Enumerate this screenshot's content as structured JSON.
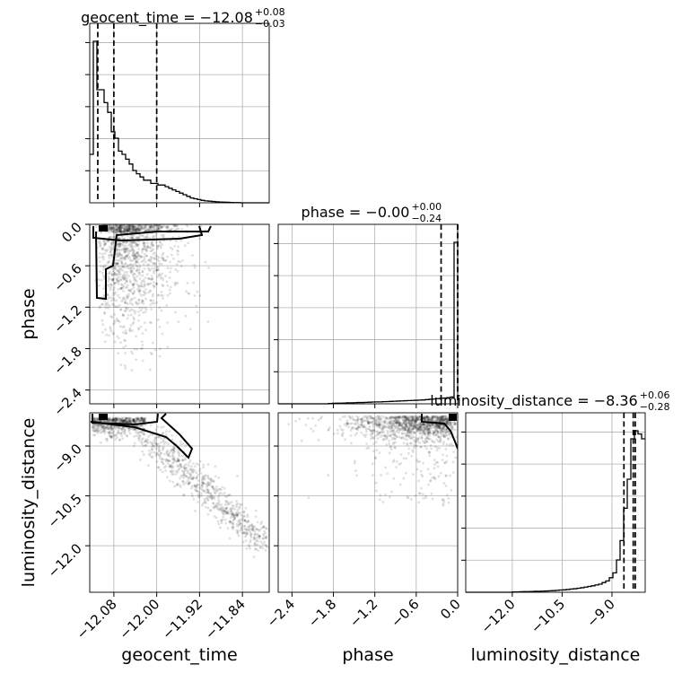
{
  "chart_data": {
    "type": "corner",
    "parameters": [
      "geocent_time",
      "phase",
      "luminosity_distance"
    ],
    "axis_labels": {
      "geocent_time": "geocent_time",
      "phase": "phase",
      "luminosity_distance": "luminosity_distance"
    },
    "ranges": {
      "geocent_time": [
        -12.125,
        -11.79
      ],
      "phase": [
        -2.6,
        0.0
      ],
      "luminosity_distance": [
        -13.4,
        -8.0
      ]
    },
    "ticks": {
      "geocent_time": [
        {
          "value": -12.08,
          "label": "−12.08"
        },
        {
          "value": -12.0,
          "label": "−12.00"
        },
        {
          "value": -11.92,
          "label": "−11.92"
        },
        {
          "value": -11.84,
          "label": "−11.84"
        }
      ],
      "phase": [
        {
          "value": -2.4,
          "label": "−2.4"
        },
        {
          "value": -1.8,
          "label": "−1.8"
        },
        {
          "value": -1.2,
          "label": "−1.2"
        },
        {
          "value": -0.6,
          "label": "−0.6"
        },
        {
          "value": 0.0,
          "label": "0.0"
        }
      ],
      "luminosity_distance": [
        {
          "value": -12.0,
          "label": "−12.0"
        },
        {
          "value": -10.5,
          "label": "−10.5"
        },
        {
          "value": -9.0,
          "label": "−9.0"
        }
      ]
    },
    "titles": [
      {
        "param": "geocent_time",
        "text": "geocent_time = −12.08",
        "sup": "+0.08",
        "sub": "−0.03"
      },
      {
        "param": "phase",
        "text": "phase = −0.00",
        "sup": "+0.00",
        "sub": "−0.24"
      },
      {
        "param": "luminosity_distance",
        "text": "luminosity_distance = −8.36",
        "sup": "+0.06",
        "sub": "−0.28"
      }
    ],
    "quantiles": {
      "geocent_time": [
        -12.11,
        -12.08,
        -12.0
      ],
      "phase": [
        -0.24,
        0.0,
        0.0
      ],
      "luminosity_distance": [
        -8.64,
        -8.36,
        -8.3
      ]
    },
    "histograms": {
      "geocent_time": {
        "edges": [
          -12.125,
          -12.1183,
          -12.1116,
          -12.1049,
          -12.0982,
          -12.0915,
          -12.0848,
          -12.0781,
          -12.0714,
          -12.0647,
          -12.058,
          -12.0513,
          -12.0446,
          -12.0379,
          -12.0312,
          -12.0245,
          -12.0178,
          -12.0111,
          -12.0044,
          -11.9977,
          -11.991,
          -11.9843,
          -11.9776,
          -11.9709,
          -11.9642,
          -11.9575,
          -11.9508,
          -11.9441,
          -11.9374,
          -11.9307,
          -11.924,
          -11.9173,
          -11.9106,
          -11.9039,
          -11.8972,
          -11.8905,
          -11.8838,
          -11.8771,
          -11.8704,
          -11.8637,
          -11.857,
          -11.8503,
          -11.8436,
          -11.8369,
          -11.8302,
          -11.8235,
          -11.8168,
          -11.8101,
          -11.8034,
          -11.7967,
          -11.79
        ],
        "counts": [
          0.3,
          1.0,
          0.7,
          0.7,
          0.62,
          0.56,
          0.44,
          0.4,
          0.32,
          0.3,
          0.27,
          0.24,
          0.2,
          0.18,
          0.16,
          0.14,
          0.14,
          0.12,
          0.12,
          0.11,
          0.11,
          0.1,
          0.09,
          0.08,
          0.07,
          0.06,
          0.05,
          0.04,
          0.03,
          0.025,
          0.02,
          0.015,
          0.012,
          0.01,
          0.008,
          0.006,
          0.005,
          0.004,
          0.003,
          0.002,
          0.001,
          0.001,
          0.0,
          0.0,
          0.0,
          0.0,
          0.0,
          0.0,
          0.0,
          0.0
        ]
      },
      "phase": {
        "edges": [
          -2.6,
          -2.548,
          -2.496,
          -2.444,
          -2.392,
          -2.34,
          -2.288,
          -2.236,
          -2.184,
          -2.132,
          -2.08,
          -2.028,
          -1.976,
          -1.924,
          -1.872,
          -1.82,
          -1.768,
          -1.716,
          -1.664,
          -1.612,
          -1.56,
          -1.508,
          -1.456,
          -1.404,
          -1.352,
          -1.3,
          -1.248,
          -1.196,
          -1.144,
          -1.092,
          -1.04,
          -0.988,
          -0.936,
          -0.884,
          -0.832,
          -0.78,
          -0.728,
          -0.676,
          -0.624,
          -0.572,
          -0.52,
          -0.468,
          -0.416,
          -0.364,
          -0.312,
          -0.26,
          -0.208,
          -0.156,
          -0.104,
          -0.052,
          0.0
        ],
        "counts": [
          0,
          0,
          0,
          0,
          0,
          0,
          0,
          0,
          0,
          0,
          0,
          0,
          0,
          0,
          0.002,
          0.003,
          0.004,
          0.004,
          0.005,
          0.006,
          0.006,
          0.007,
          0.008,
          0.008,
          0.009,
          0.01,
          0.011,
          0.012,
          0.012,
          0.013,
          0.014,
          0.015,
          0.016,
          0.017,
          0.018,
          0.019,
          0.02,
          0.021,
          0.022,
          0.023,
          0.024,
          0.026,
          0.028,
          0.03,
          0.032,
          0.034,
          0.036,
          0.038,
          0.042,
          1.0
        ]
      },
      "luminosity_distance": {
        "edges": [
          -13.4,
          -13.292,
          -13.184,
          -13.076,
          -12.968,
          -12.86,
          -12.752,
          -12.644,
          -12.536,
          -12.428,
          -12.32,
          -12.212,
          -12.104,
          -11.996,
          -11.888,
          -11.78,
          -11.672,
          -11.564,
          -11.456,
          -11.348,
          -11.24,
          -11.132,
          -11.024,
          -10.916,
          -10.808,
          -10.7,
          -10.592,
          -10.484,
          -10.376,
          -10.268,
          -10.16,
          -10.052,
          -9.944,
          -9.836,
          -9.728,
          -9.62,
          -9.512,
          -9.404,
          -9.296,
          -9.188,
          -9.08,
          -8.972,
          -8.864,
          -8.756,
          -8.648,
          -8.54,
          -8.432,
          -8.324,
          -8.216,
          -8.108,
          -8.0
        ],
        "counts": [
          0,
          0,
          0,
          0,
          0,
          0,
          0,
          0,
          0,
          0,
          0,
          0,
          0,
          0.002,
          0.002,
          0.003,
          0.004,
          0.004,
          0.005,
          0.006,
          0.006,
          0.007,
          0.008,
          0.009,
          0.01,
          0.012,
          0.014,
          0.015,
          0.017,
          0.02,
          0.022,
          0.025,
          0.028,
          0.032,
          0.036,
          0.04,
          0.045,
          0.05,
          0.06,
          0.07,
          0.09,
          0.12,
          0.2,
          0.32,
          0.52,
          0.7,
          0.95,
          1.0,
          0.98,
          0.95
        ]
      }
    }
  }
}
